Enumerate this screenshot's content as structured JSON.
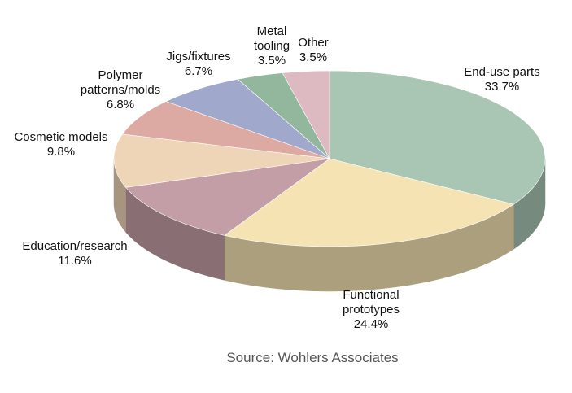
{
  "chart_data": {
    "type": "pie3d",
    "categories": [
      "End-use parts",
      "Functional prototypes",
      "Education/research",
      "Cosmetic models",
      "Polymer patterns/molds",
      "Jigs/fixtures",
      "Metal tooling",
      "Other"
    ],
    "values": [
      33.7,
      24.4,
      11.6,
      9.8,
      6.8,
      6.7,
      3.5,
      3.5
    ],
    "value_labels": [
      "33.7%",
      "24.4%",
      "11.6%",
      "9.8%",
      "6.8%",
      "6.7%",
      "3.5%",
      "3.5%"
    ],
    "colors": [
      "#a9c5b3",
      "#f6e3b3",
      "#c39ea6",
      "#eed5b8",
      "#dcaaa3",
      "#a0a8cb",
      "#92b79d",
      "#ddbac2"
    ],
    "source": "Source: Wohlers Associates"
  }
}
